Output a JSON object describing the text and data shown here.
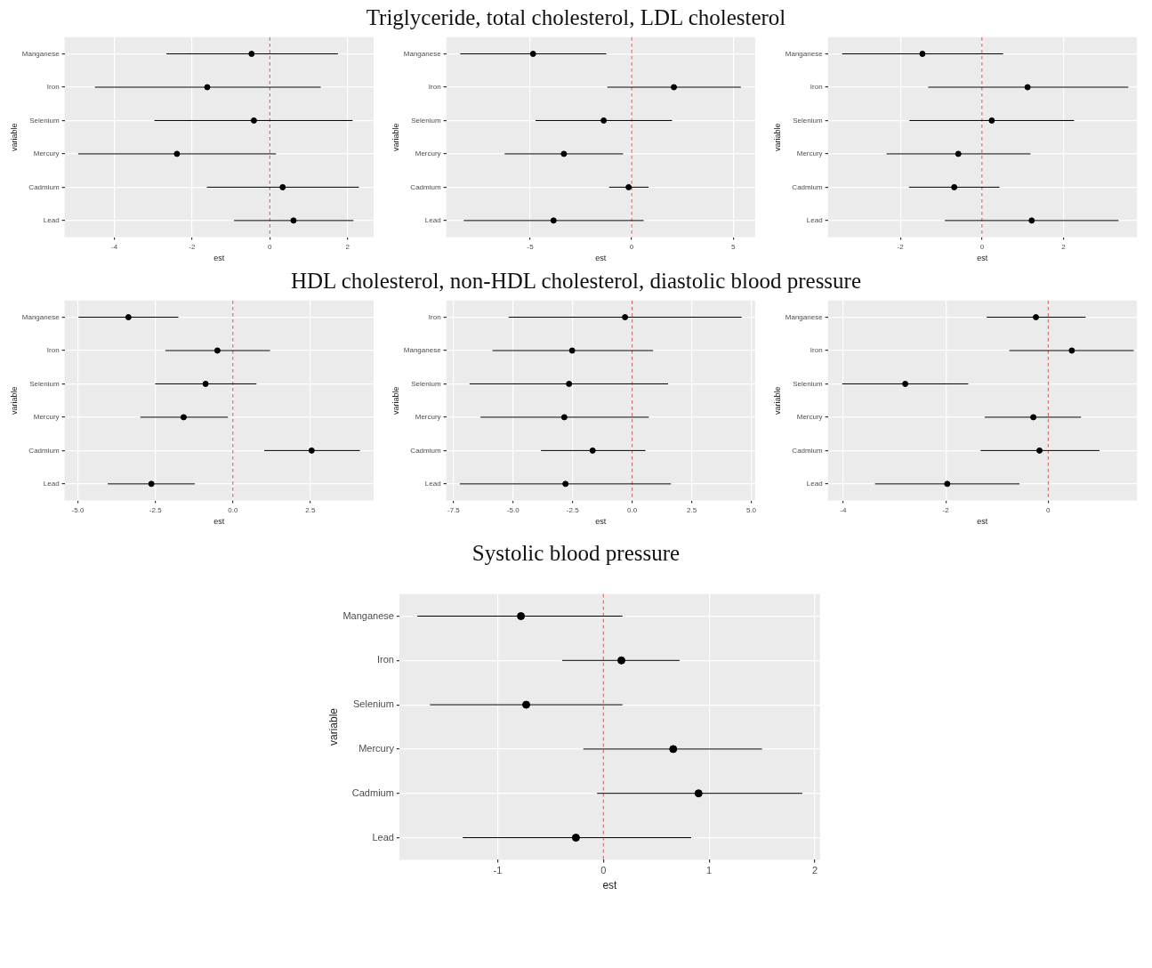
{
  "chart_data": [
    {
      "type": "scatter",
      "orientation": "horizontal",
      "xlabel": "est",
      "ylabel": "variable",
      "categories": [
        "Manganese",
        "Iron",
        "Selenium",
        "Mercury",
        "Cadmium",
        "Lead"
      ],
      "color": "#000000",
      "marker": "circle",
      "grid": true,
      "values": [
        -0.47,
        -1.61,
        -0.41,
        -2.39,
        0.33,
        0.61
      ],
      "errors": [
        [
          -2.66,
          1.75
        ],
        [
          -4.5,
          1.31
        ],
        [
          -2.97,
          2.13
        ],
        [
          -4.93,
          0.16
        ],
        [
          -1.62,
          2.29
        ],
        [
          -0.92,
          2.15
        ]
      ],
      "xlim": [
        -5.28,
        2.67
      ],
      "xticks": [
        -4,
        -2,
        0,
        2
      ],
      "ref_lines": [
        {
          "axis": "x",
          "value": 0,
          "color": "#d9534f",
          "line_style": "dashed"
        }
      ]
    },
    {
      "type": "scatter",
      "title": "Triglyceride, total cholesterol, LDL cholesterol",
      "orientation": "horizontal",
      "xlabel": "est",
      "ylabel": "variable",
      "categories": [
        "Manganese",
        "Iron",
        "Selenium",
        "Mercury",
        "Cadmium",
        "Lead"
      ],
      "color": "#000000",
      "marker": "circle",
      "grid": true,
      "values": [
        -4.86,
        2.08,
        -1.38,
        -3.34,
        -0.15,
        -3.85
      ],
      "errors": [
        [
          -8.45,
          -1.25
        ],
        [
          -1.2,
          5.38
        ],
        [
          -4.74,
          1.99
        ],
        [
          -6.26,
          -0.42
        ],
        [
          -1.11,
          0.83
        ],
        [
          -8.28,
          0.59
        ]
      ],
      "xlim": [
        -9.14,
        6.09
      ],
      "xticks": [
        -5,
        0,
        5
      ],
      "ref_lines": [
        {
          "axis": "x",
          "value": 0,
          "color": "#d9534f",
          "line_style": "dashed"
        }
      ]
    },
    {
      "type": "scatter",
      "orientation": "horizontal",
      "xlabel": "est",
      "ylabel": "variable",
      "categories": [
        "Manganese",
        "Iron",
        "Selenium",
        "Mercury",
        "Cadmium",
        "Lead"
      ],
      "color": "#000000",
      "marker": "circle",
      "grid": true,
      "values": [
        -1.46,
        1.12,
        0.24,
        -0.58,
        -0.68,
        1.22
      ],
      "errors": [
        [
          -3.43,
          0.52
        ],
        [
          -1.32,
          3.59
        ],
        [
          -1.78,
          2.26
        ],
        [
          -2.34,
          1.19
        ],
        [
          -1.79,
          0.43
        ],
        [
          -0.91,
          3.35
        ]
      ],
      "xlim": [
        -3.78,
        3.8
      ],
      "xticks": [
        -2,
        0,
        2
      ],
      "ref_lines": [
        {
          "axis": "x",
          "value": 0,
          "color": "#d9534f",
          "line_style": "dashed"
        }
      ]
    },
    {
      "type": "scatter",
      "orientation": "horizontal",
      "xlabel": "est",
      "ylabel": "variable",
      "categories": [
        "Manganese",
        "Iron",
        "Selenium",
        "Mercury",
        "Cadmium",
        "Lead"
      ],
      "color": "#000000",
      "marker": "circle",
      "grid": true,
      "values": [
        -3.37,
        -0.5,
        -0.88,
        -1.59,
        2.54,
        -2.63
      ],
      "errors": [
        [
          -4.98,
          -1.76
        ],
        [
          -2.18,
          1.2
        ],
        [
          -2.51,
          0.76
        ],
        [
          -2.99,
          -0.16
        ],
        [
          1.01,
          4.1
        ],
        [
          -4.04,
          -1.23
        ]
      ],
      "xlim": [
        -5.43,
        4.54
      ],
      "xticks": [
        {
          "value": -5,
          "label": "-5.0"
        },
        {
          "value": -2.5,
          "label": "-2.5"
        },
        {
          "value": 0,
          "label": "0.0"
        },
        {
          "value": 2.5,
          "label": "2.5"
        }
      ],
      "ref_lines": [
        {
          "axis": "x",
          "value": 0,
          "color": "#d9534f",
          "line_style": "dashed"
        }
      ]
    },
    {
      "type": "scatter",
      "title": "HDL cholesterol, non-HDL cholesterol, diastolic blood pressure",
      "orientation": "horizontal",
      "xlabel": "est",
      "ylabel": "variable",
      "categories": [
        "Iron",
        "Manganese",
        "Selenium",
        "Mercury",
        "Cadmium",
        "Lead"
      ],
      "color": "#000000",
      "marker": "circle",
      "grid": true,
      "values": [
        -0.3,
        -2.52,
        -2.65,
        -2.85,
        -1.66,
        -2.8
      ],
      "errors": [
        [
          -5.19,
          4.6
        ],
        [
          -5.87,
          0.88
        ],
        [
          -6.83,
          1.51
        ],
        [
          -6.37,
          0.7
        ],
        [
          -3.83,
          0.56
        ],
        [
          -7.24,
          1.63
        ]
      ],
      "xlim": [
        -7.81,
        5.17
      ],
      "xticks": [
        {
          "value": -7.5,
          "label": "-7.5"
        },
        {
          "value": -5,
          "label": "-5.0"
        },
        {
          "value": -2.5,
          "label": "-2.5"
        },
        {
          "value": 0,
          "label": "0.0"
        },
        {
          "value": 2.5,
          "label": "2.5"
        },
        {
          "value": 5,
          "label": "5.0"
        }
      ],
      "ref_lines": [
        {
          "axis": "x",
          "value": 0,
          "color": "#d9534f",
          "line_style": "dashed"
        }
      ]
    },
    {
      "type": "scatter",
      "orientation": "horizontal",
      "xlabel": "est",
      "ylabel": "variable",
      "categories": [
        "Manganese",
        "Iron",
        "Selenium",
        "Mercury",
        "Cadmium",
        "Lead"
      ],
      "color": "#000000",
      "marker": "circle",
      "grid": true,
      "values": [
        -0.24,
        0.46,
        -2.79,
        -0.29,
        -0.17,
        -1.97
      ],
      "errors": [
        [
          -1.2,
          0.73
        ],
        [
          -0.76,
          1.67
        ],
        [
          -4.02,
          -1.56
        ],
        [
          -1.24,
          0.64
        ],
        [
          -1.32,
          1.0
        ],
        [
          -3.38,
          -0.56
        ]
      ],
      "xlim": [
        -4.3,
        1.73
      ],
      "xticks": [
        -4,
        -2,
        0
      ],
      "ref_lines": [
        {
          "axis": "x",
          "value": 0,
          "color": "#d9534f",
          "line_style": "dashed"
        }
      ]
    },
    {
      "type": "scatter",
      "title": "Systolic blood pressure",
      "orientation": "horizontal",
      "xlabel": "est",
      "ylabel": "variable",
      "categories": [
        "Manganese",
        "Iron",
        "Selenium",
        "Mercury",
        "Cadmium",
        "Lead"
      ],
      "color": "#000000",
      "marker": "circle",
      "grid": true,
      "values": [
        -0.78,
        0.17,
        -0.73,
        0.66,
        0.9,
        -0.26
      ],
      "errors": [
        [
          -1.76,
          0.18
        ],
        [
          -0.39,
          0.72
        ],
        [
          -1.64,
          0.18
        ],
        [
          -0.19,
          1.5
        ],
        [
          -0.06,
          1.88
        ],
        [
          -1.33,
          0.83
        ]
      ],
      "xlim": [
        -1.93,
        2.05
      ],
      "xticks": [
        -1,
        0,
        1,
        2
      ],
      "ref_lines": [
        {
          "axis": "x",
          "value": 0,
          "color": "#d9534f",
          "line_style": "dashed"
        }
      ]
    }
  ]
}
